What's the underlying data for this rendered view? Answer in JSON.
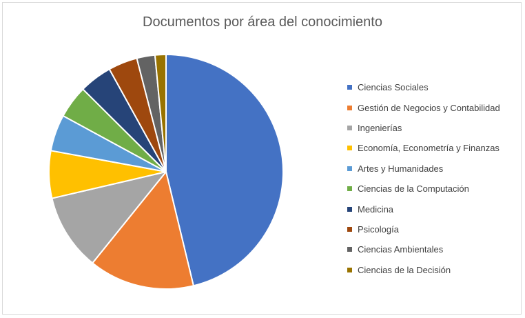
{
  "chart_data": {
    "type": "pie",
    "title": "Documentos por área del conocimiento",
    "legend_position": "right",
    "slices": [
      {
        "label": "Ciencias Sociales",
        "value": 46.0,
        "color": "#4472C4"
      },
      {
        "label": "Gestión de Negocios y Contabilidad",
        "value": 14.5,
        "color": "#ED7D31"
      },
      {
        "label": "Ingenierías",
        "value": 10.5,
        "color": "#A5A5A5"
      },
      {
        "label": "Economía, Econometría y Finanzas",
        "value": 6.5,
        "color": "#FFC000"
      },
      {
        "label": "Artes y Humanidades",
        "value": 5.0,
        "color": "#5B9BD5"
      },
      {
        "label": "Ciencias de la Computación",
        "value": 4.5,
        "color": "#70AD47"
      },
      {
        "label": "Medicina",
        "value": 4.5,
        "color": "#264478"
      },
      {
        "label": "Psicología",
        "value": 4.0,
        "color": "#9E480E"
      },
      {
        "label": "Ciencias Ambientales",
        "value": 2.5,
        "color": "#636363"
      },
      {
        "label": "Ciencias de la Decisión",
        "value": 1.5,
        "color": "#997300"
      }
    ]
  }
}
